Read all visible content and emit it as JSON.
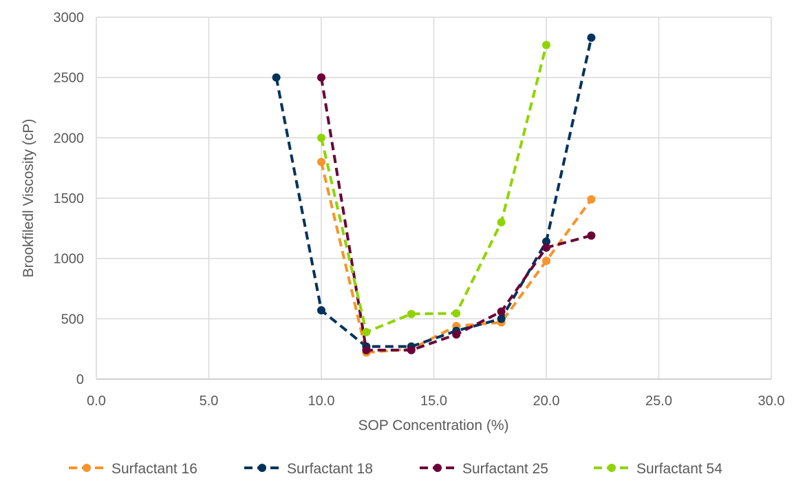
{
  "chart_data": {
    "type": "line",
    "title": "",
    "xlabel": "SOP Concentration (%)",
    "ylabel": "Brookfiledl Viscosity (cP)",
    "xlim": [
      0,
      30
    ],
    "ylim": [
      0,
      3000
    ],
    "xticks": [
      "0.0",
      "5.0",
      "10.0",
      "15.0",
      "20.0",
      "25.0",
      "30.0"
    ],
    "yticks": [
      "0",
      "500",
      "1000",
      "1500",
      "2000",
      "2500",
      "3000"
    ],
    "grid": true,
    "legend_position": "bottom",
    "series": [
      {
        "name": "Surfactant 16",
        "color": "#F7942B",
        "x": [
          10,
          12,
          14,
          16,
          18,
          20,
          22
        ],
        "y": [
          1800,
          220,
          250,
          440,
          470,
          980,
          1490
        ]
      },
      {
        "name": "Surfactant 18",
        "color": "#00335B",
        "x": [
          8,
          10,
          12,
          14,
          16,
          18,
          20,
          22
        ],
        "y": [
          2500,
          570,
          270,
          270,
          400,
          500,
          1140,
          2830
        ]
      },
      {
        "name": "Surfactant 25",
        "color": "#6B0038",
        "x": [
          10,
          12,
          14,
          16,
          18,
          20,
          22
        ],
        "y": [
          2500,
          240,
          240,
          370,
          560,
          1090,
          1190
        ]
      },
      {
        "name": "Surfactant 54",
        "color": "#8FD400",
        "x": [
          10,
          12,
          14,
          16,
          18,
          20
        ],
        "y": [
          2000,
          390,
          540,
          545,
          1300,
          2770
        ]
      }
    ]
  }
}
